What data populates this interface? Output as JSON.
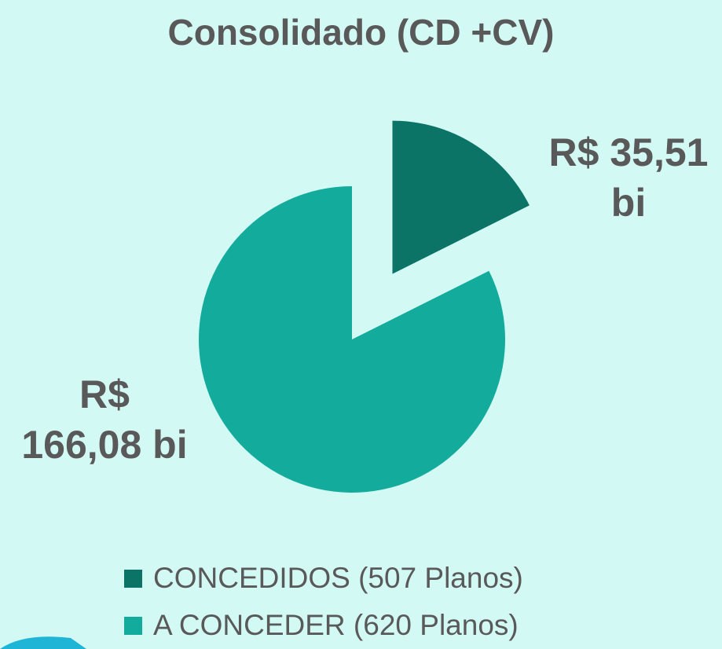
{
  "chart_data": {
    "type": "pie",
    "title": "Consolidado (CD +CV)",
    "categories": [
      "CONCEDIDOS (507 Planos)",
      "A CONCEDER (620 Planos)"
    ],
    "values": [
      35.51,
      166.08
    ],
    "value_labels": [
      "R$ 35,51 bi",
      "R$ 166,08 bi"
    ],
    "colors": [
      "#0b7466",
      "#13ac9c"
    ]
  }
}
